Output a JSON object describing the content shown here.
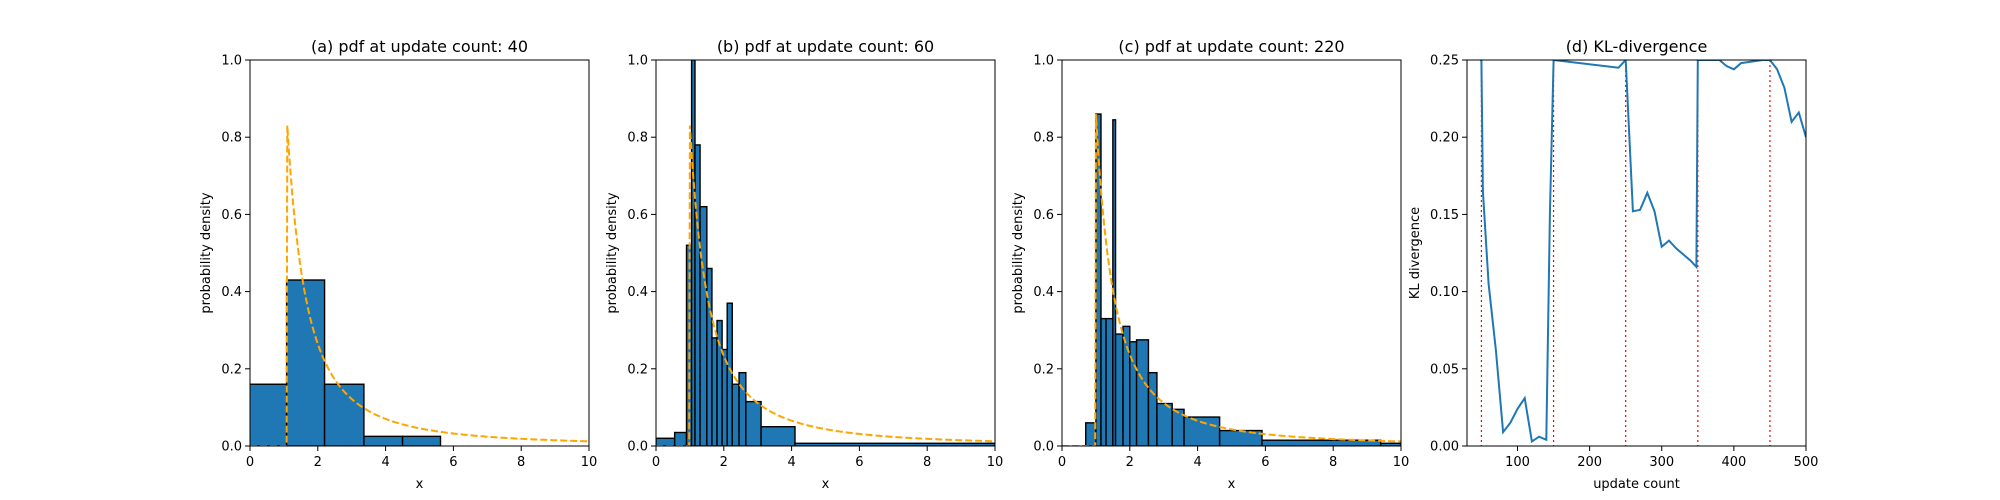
{
  "chart_data": [
    {
      "type": "histogram",
      "title": "(a) pdf at update count: 40",
      "xlabel": "x",
      "ylabel": "probability density",
      "xlim": [
        0,
        10
      ],
      "ylim": [
        0,
        1.0
      ],
      "xticks": [
        0,
        2,
        4,
        6,
        8,
        10
      ],
      "yticks": [
        0.0,
        0.2,
        0.4,
        0.6,
        0.8,
        1.0
      ],
      "bins": [
        {
          "x0": -0.1,
          "x1": 1.08,
          "y": 0.16
        },
        {
          "x0": 1.08,
          "x1": 2.2,
          "y": 0.43
        },
        {
          "x0": 2.2,
          "x1": 3.36,
          "y": 0.16
        },
        {
          "x0": 3.36,
          "x1": 4.5,
          "y": 0.025
        },
        {
          "x0": 4.5,
          "x1": 5.62,
          "y": 0.025
        }
      ],
      "reference_curve": {
        "type": "pareto-like density",
        "x_min": 1.1,
        "peak": 0.83,
        "color": "#ffa500",
        "style": "dashed"
      },
      "bar_color": "#1f77b4"
    },
    {
      "type": "histogram",
      "title": "(b) pdf at update count: 60",
      "xlabel": "x",
      "ylabel": "probability density",
      "xlim": [
        0,
        10
      ],
      "ylim": [
        0,
        1.0
      ],
      "xticks": [
        0,
        2,
        4,
        6,
        8,
        10
      ],
      "yticks": [
        0.0,
        0.2,
        0.4,
        0.6,
        0.8,
        1.0
      ],
      "bins": [
        {
          "x0": 0.0,
          "x1": 0.55,
          "y": 0.02
        },
        {
          "x0": 0.55,
          "x1": 0.9,
          "y": 0.035
        },
        {
          "x0": 0.9,
          "x1": 1.05,
          "y": 0.52
        },
        {
          "x0": 1.05,
          "x1": 1.15,
          "y": 1.0
        },
        {
          "x0": 1.15,
          "x1": 1.3,
          "y": 0.78
        },
        {
          "x0": 1.3,
          "x1": 1.5,
          "y": 0.62
        },
        {
          "x0": 1.5,
          "x1": 1.65,
          "y": 0.46
        },
        {
          "x0": 1.65,
          "x1": 1.8,
          "y": 0.28
        },
        {
          "x0": 1.8,
          "x1": 1.95,
          "y": 0.325
        },
        {
          "x0": 1.95,
          "x1": 2.1,
          "y": 0.25
        },
        {
          "x0": 2.1,
          "x1": 2.25,
          "y": 0.37
        },
        {
          "x0": 2.25,
          "x1": 2.45,
          "y": 0.16
        },
        {
          "x0": 2.45,
          "x1": 2.65,
          "y": 0.19
        },
        {
          "x0": 2.65,
          "x1": 3.1,
          "y": 0.115
        },
        {
          "x0": 3.1,
          "x1": 4.1,
          "y": 0.05
        },
        {
          "x0": 4.1,
          "x1": 10.0,
          "y": 0.007
        }
      ],
      "reference_curve": {
        "type": "pareto-like density",
        "x_min": 1.0,
        "peak": 0.83,
        "color": "#ffa500",
        "style": "dashed"
      },
      "bar_color": "#1f77b4"
    },
    {
      "type": "histogram",
      "title": "(c) pdf at update count: 220",
      "xlabel": "x",
      "ylabel": "probability density",
      "xlim": [
        0,
        10
      ],
      "ylim": [
        0,
        1.0
      ],
      "xticks": [
        0,
        2,
        4,
        6,
        8,
        10
      ],
      "yticks": [
        0.0,
        0.2,
        0.4,
        0.6,
        0.8,
        1.0
      ],
      "bins": [
        {
          "x0": 0.7,
          "x1": 1.0,
          "y": 0.06
        },
        {
          "x0": 1.0,
          "x1": 1.15,
          "y": 0.86
        },
        {
          "x0": 1.15,
          "x1": 1.3,
          "y": 0.33
        },
        {
          "x0": 1.3,
          "x1": 1.5,
          "y": 0.33
        },
        {
          "x0": 1.5,
          "x1": 1.58,
          "y": 0.845
        },
        {
          "x0": 1.58,
          "x1": 1.8,
          "y": 0.29
        },
        {
          "x0": 1.8,
          "x1": 2.0,
          "y": 0.31
        },
        {
          "x0": 2.0,
          "x1": 2.2,
          "y": 0.27
        },
        {
          "x0": 2.2,
          "x1": 2.55,
          "y": 0.275
        },
        {
          "x0": 2.55,
          "x1": 2.8,
          "y": 0.19
        },
        {
          "x0": 2.8,
          "x1": 3.25,
          "y": 0.11
        },
        {
          "x0": 3.25,
          "x1": 3.6,
          "y": 0.095
        },
        {
          "x0": 3.6,
          "x1": 4.65,
          "y": 0.075
        },
        {
          "x0": 4.65,
          "x1": 5.9,
          "y": 0.04
        },
        {
          "x0": 5.9,
          "x1": 9.4,
          "y": 0.015
        },
        {
          "x0": 9.4,
          "x1": 10.0,
          "y": 0.007
        }
      ],
      "reference_curve": {
        "type": "pareto-like density",
        "x_min": 1.0,
        "peak": 0.86,
        "color": "#ffa500",
        "style": "dashed"
      },
      "bar_color": "#1f77b4"
    },
    {
      "type": "line",
      "title": "(d) KL-divergence",
      "xlabel": "update count",
      "ylabel": "KL divergence",
      "xlim": [
        30,
        500
      ],
      "ylim": [
        0.0,
        0.25
      ],
      "xticks": [
        100,
        200,
        300,
        400,
        500
      ],
      "yticks": [
        0.0,
        0.05,
        0.1,
        0.15,
        0.2,
        0.25
      ],
      "series": [
        {
          "color": "#1f77b4",
          "x": [
            48,
            50,
            52,
            60,
            70,
            80,
            90,
            100,
            110,
            120,
            130,
            140,
            145,
            150,
            240,
            250,
            260,
            270,
            280,
            290,
            300,
            310,
            320,
            330,
            340,
            348,
            350,
            380,
            390,
            400,
            410,
            440,
            450,
            460,
            470,
            480,
            490,
            500
          ],
          "y": [
            0.25,
            0.25,
            0.165,
            0.105,
            0.062,
            0.009,
            0.015,
            0.024,
            0.031,
            0.003,
            0.006,
            0.004,
            0.15,
            0.25,
            0.245,
            0.25,
            0.152,
            0.153,
            0.164,
            0.152,
            0.129,
            0.133,
            0.128,
            0.124,
            0.12,
            0.116,
            0.25,
            0.25,
            0.246,
            0.244,
            0.248,
            0.25,
            0.25,
            0.244,
            0.232,
            0.21,
            0.216,
            0.2
          ]
        }
      ],
      "vertical_markers": {
        "x": [
          50,
          150,
          250,
          350,
          450
        ],
        "color": "#ff0000",
        "style": "dotted"
      }
    }
  ]
}
